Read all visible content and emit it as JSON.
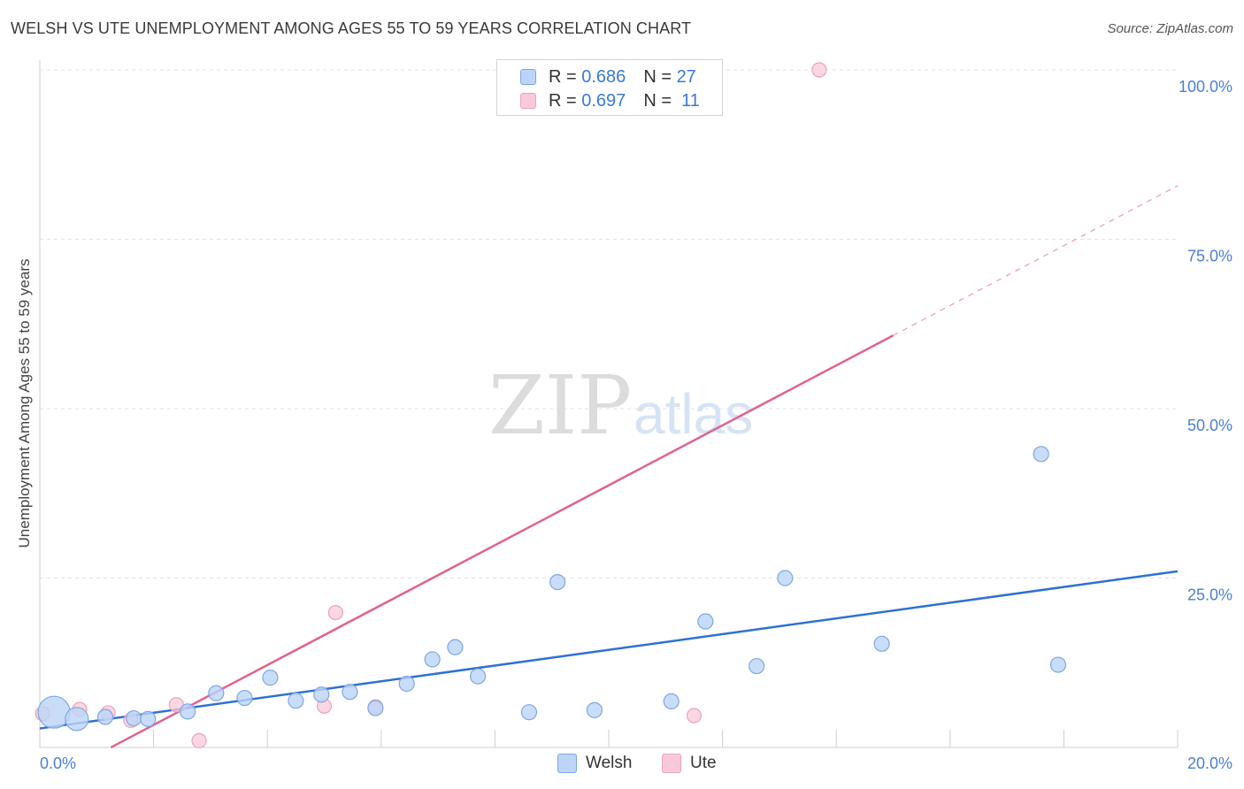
{
  "title": "WELSH VS UTE UNEMPLOYMENT AMONG AGES 55 TO 59 YEARS CORRELATION CHART",
  "source": "Source: ZipAtlas.com",
  "watermark": {
    "zip": "ZIP",
    "atlas": "atlas"
  },
  "colors": {
    "welsh": "#5b8fe0",
    "welsh_fill": "#bcd4f7",
    "ute": "#e8709a",
    "ute_fill": "#f9c9d8",
    "grid": "#e3e3e3",
    "axis_text": "#4a7fd6"
  },
  "legend": {
    "rows": [
      {
        "r_label": "R =",
        "r_value": "0.686",
        "n_label": "N =",
        "n_value": "27"
      },
      {
        "r_label": "R =",
        "r_value": "0.697",
        "n_label": "N =",
        "n_value": "11"
      }
    ]
  },
  "bottom_legend": [
    "Welsh",
    "Ute"
  ],
  "chart_data": {
    "type": "scatter",
    "title": "WELSH VS UTE UNEMPLOYMENT AMONG AGES 55 TO 59 YEARS CORRELATION CHART",
    "xlabel": "",
    "ylabel": "Unemployment Among Ages 55 to 59 years",
    "xlim": [
      0,
      20
    ],
    "ylim": [
      0,
      100
    ],
    "x_tick_labels": [
      "0.0%",
      "20.0%"
    ],
    "y_tick_labels": [
      "100.0%",
      "75.0%",
      "50.0%",
      "25.0%"
    ],
    "y_ticks": [
      100,
      75,
      50,
      25
    ],
    "series": [
      {
        "name": "Welsh",
        "points": [
          [
            0.25,
            5.2,
            "large"
          ],
          [
            0.65,
            4.2,
            "medium"
          ],
          [
            1.15,
            4.5
          ],
          [
            1.65,
            4.3
          ],
          [
            1.9,
            4.2
          ],
          [
            2.6,
            5.3
          ],
          [
            3.1,
            8.0
          ],
          [
            3.6,
            7.3
          ],
          [
            4.05,
            10.3
          ],
          [
            4.5,
            6.9
          ],
          [
            4.95,
            7.8
          ],
          [
            5.45,
            8.2
          ],
          [
            5.9,
            5.8
          ],
          [
            6.45,
            9.4
          ],
          [
            6.9,
            13.0
          ],
          [
            7.3,
            14.8
          ],
          [
            7.7,
            10.5
          ],
          [
            8.6,
            5.2
          ],
          [
            9.1,
            24.4
          ],
          [
            9.75,
            5.5
          ],
          [
            11.1,
            6.8
          ],
          [
            11.7,
            18.6
          ],
          [
            12.6,
            12.0
          ],
          [
            13.1,
            25.0
          ],
          [
            14.8,
            15.3
          ],
          [
            17.6,
            43.3
          ],
          [
            17.9,
            12.2
          ]
        ],
        "trendline": {
          "x": [
            0.0,
            20.0
          ],
          "y": [
            2.8,
            26.0
          ]
        }
      },
      {
        "name": "Ute",
        "points": [
          [
            0.05,
            5.0
          ],
          [
            0.7,
            5.6
          ],
          [
            1.2,
            5.1
          ],
          [
            1.6,
            4.0
          ],
          [
            2.4,
            6.3
          ],
          [
            2.8,
            1.0
          ],
          [
            5.0,
            6.1
          ],
          [
            5.2,
            19.9
          ],
          [
            5.9,
            6.0
          ],
          [
            11.5,
            4.7
          ],
          [
            13.7,
            100.0
          ]
        ],
        "trendline": {
          "x": [
            1.25,
            15.0
          ],
          "y": [
            0.0,
            60.8
          ],
          "dashed_extension": {
            "x": [
              15.0,
              20.0
            ],
            "y": [
              60.8,
              82.9
            ]
          }
        }
      }
    ]
  }
}
